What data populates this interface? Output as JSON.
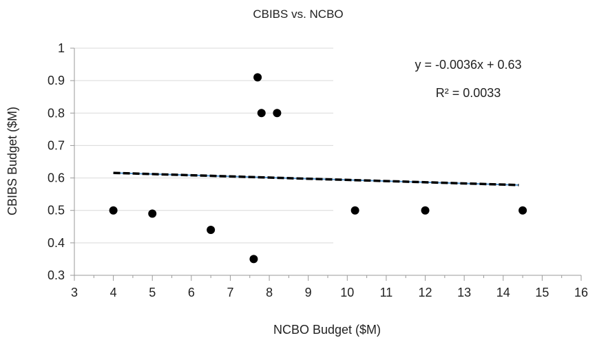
{
  "chart_data": {
    "type": "scatter",
    "title": "CBIBS vs. NCBO",
    "xlabel": "NCBO Budget ($M)",
    "ylabel": "CBIBS Budget ($M)",
    "xlim": [
      3,
      16
    ],
    "ylim": [
      0.3,
      1.0
    ],
    "x_ticks": [
      "3",
      "4",
      "5",
      "6",
      "7",
      "8",
      "9",
      "10",
      "11",
      "12",
      "13",
      "14",
      "15",
      "16"
    ],
    "y_ticks": [
      "0.3",
      "0.4",
      "0.5",
      "0.6",
      "0.7",
      "0.8",
      "0.9",
      "1"
    ],
    "grid": "horizontal",
    "series": [
      {
        "points": [
          {
            "x": 4.0,
            "y": 0.5
          },
          {
            "x": 5.0,
            "y": 0.49
          },
          {
            "x": 6.5,
            "y": 0.44
          },
          {
            "x": 7.6,
            "y": 0.35
          },
          {
            "x": 7.7,
            "y": 0.91
          },
          {
            "x": 7.8,
            "y": 0.8
          },
          {
            "x": 8.2,
            "y": 0.8
          },
          {
            "x": 10.2,
            "y": 0.5
          },
          {
            "x": 12.0,
            "y": 0.5
          },
          {
            "x": 14.5,
            "y": 0.5
          }
        ]
      }
    ],
    "trendline": {
      "slope": -0.0036,
      "intercept": 0.63,
      "x_range": [
        4.0,
        14.4
      ],
      "equation": "y = -0.0036x + 0.63",
      "r_squared": "R² = 0.0033"
    },
    "colors": {
      "marker": "#000000",
      "trendline_dash": "#000000",
      "trendline_under": "#5b9bd5"
    }
  }
}
